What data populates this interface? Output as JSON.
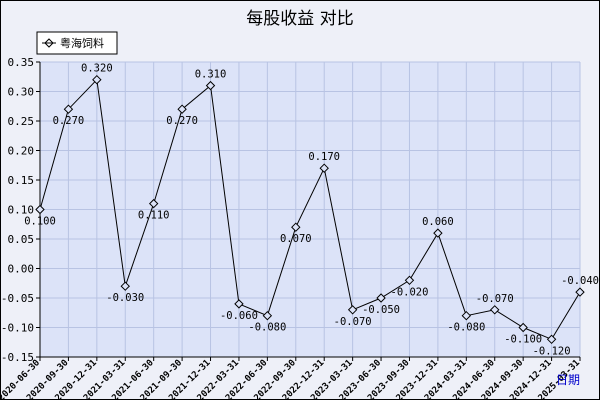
{
  "chart_data": {
    "type": "line",
    "title": "每股收益  对比",
    "legend_position": "top-left",
    "grid": true,
    "ylim": [
      -0.15,
      0.35
    ],
    "yticks": [
      "0.35",
      "0.30",
      "0.25",
      "0.20",
      "0.15",
      "0.10",
      "0.05",
      "0.00",
      "-0.05",
      "-0.10",
      "-0.15"
    ],
    "categories": [
      "2020-06-30",
      "2020-09-30",
      "2020-12-31",
      "2021-03-31",
      "2021-06-30",
      "2021-09-30",
      "2021-12-31",
      "2022-03-31",
      "2022-06-30",
      "2022-09-30",
      "2022-12-31",
      "2023-03-31",
      "2023-06-30",
      "2023-09-30",
      "2023-12-31",
      "2024-03-31",
      "2024-06-30",
      "2024-09-30",
      "2024-12-31",
      "2025-03-31"
    ],
    "series": [
      {
        "name": "粤海饲料",
        "color": "#000000",
        "values": [
          0.1,
          0.27,
          0.32,
          -0.03,
          0.11,
          0.27,
          0.31,
          -0.06,
          -0.08,
          0.07,
          0.17,
          -0.07,
          -0.05,
          -0.02,
          0.06,
          -0.08,
          -0.07,
          -0.1,
          -0.12,
          -0.04
        ],
        "labels": [
          "0.100",
          "0.270",
          "0.320",
          "-0.030",
          "0.110",
          "0.270",
          "0.310",
          "-0.060",
          "-0.080",
          "0.070",
          "0.170",
          "-0.070",
          "-0.050",
          "-0.020",
          "0.060",
          "-0.080",
          "-0.070",
          "-0.100",
          "-0.120",
          "-0.040"
        ]
      }
    ],
    "corner_link": "日期"
  },
  "colors": {
    "plot_bg": "#dce3f8",
    "grid": "#b8c3e3",
    "page_bg": "#eef0f8",
    "link": "#0000cc"
  }
}
